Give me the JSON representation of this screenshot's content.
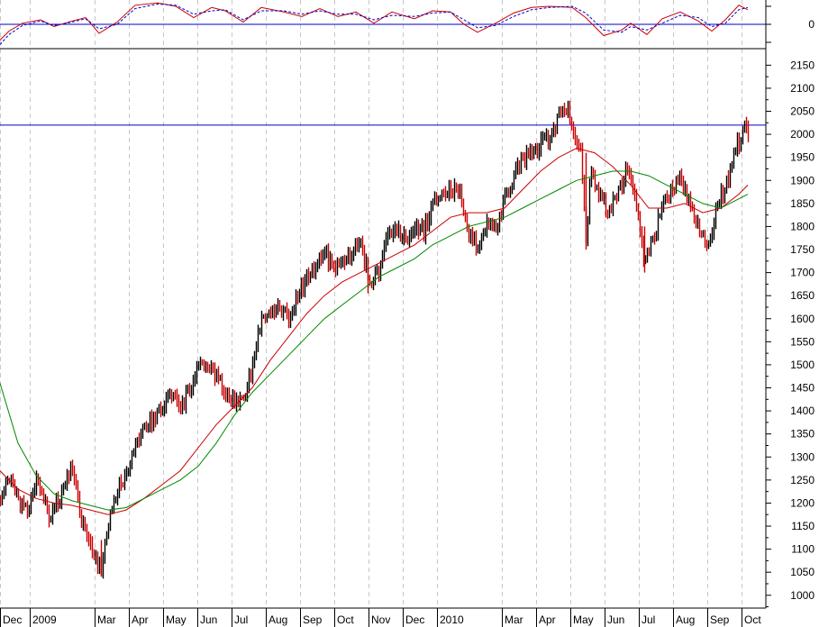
{
  "chart_data": [
    {
      "type": "line",
      "panel": "oscillator",
      "y_tick_labels": [
        "0"
      ],
      "ylim": [
        -1,
        1
      ],
      "reference_line": {
        "value": 0,
        "color": "#0000cc"
      },
      "series": [
        {
          "color": "#cc0000",
          "style": "solid",
          "values": [
            [
              0,
              -0.7
            ],
            [
              10,
              -0.3
            ],
            [
              25,
              0.05
            ],
            [
              45,
              0.2
            ],
            [
              60,
              -0.1
            ],
            [
              80,
              0.15
            ],
            [
              95,
              0.3
            ],
            [
              110,
              -0.4
            ],
            [
              130,
              0.1
            ],
            [
              150,
              0.85
            ],
            [
              175,
              0.95
            ],
            [
              195,
              0.8
            ],
            [
              215,
              0.3
            ],
            [
              235,
              0.75
            ],
            [
              250,
              0.6
            ],
            [
              270,
              0.1
            ],
            [
              290,
              0.75
            ],
            [
              315,
              0.55
            ],
            [
              335,
              0.35
            ],
            [
              355,
              0.7
            ],
            [
              375,
              0.35
            ],
            [
              395,
              0.55
            ],
            [
              415,
              0.05
            ],
            [
              435,
              0.55
            ],
            [
              460,
              0.25
            ],
            [
              480,
              0.6
            ],
            [
              500,
              0.55
            ],
            [
              515,
              0.0
            ],
            [
              530,
              -0.35
            ],
            [
              550,
              0.05
            ],
            [
              570,
              0.5
            ],
            [
              590,
              0.75
            ],
            [
              610,
              0.8
            ],
            [
              635,
              0.75
            ],
            [
              650,
              0.3
            ],
            [
              670,
              -0.5
            ],
            [
              690,
              -0.25
            ],
            [
              700,
              0.05
            ],
            [
              718,
              -0.45
            ],
            [
              735,
              0.25
            ],
            [
              755,
              0.55
            ],
            [
              775,
              0.15
            ],
            [
              790,
              -0.3
            ],
            [
              805,
              0.2
            ],
            [
              820,
              0.85
            ],
            [
              830,
              0.65
            ]
          ]
        },
        {
          "color": "#0000cc",
          "style": "dashed",
          "values": [
            [
              0,
              -0.9
            ],
            [
              10,
              -0.45
            ],
            [
              25,
              -0.05
            ],
            [
              45,
              0.15
            ],
            [
              60,
              -0.05
            ],
            [
              80,
              0.1
            ],
            [
              95,
              0.25
            ],
            [
              110,
              -0.2
            ],
            [
              130,
              0.0
            ],
            [
              150,
              0.7
            ],
            [
              175,
              0.9
            ],
            [
              195,
              0.85
            ],
            [
              215,
              0.45
            ],
            [
              235,
              0.6
            ],
            [
              250,
              0.65
            ],
            [
              270,
              0.2
            ],
            [
              290,
              0.6
            ],
            [
              315,
              0.6
            ],
            [
              335,
              0.45
            ],
            [
              355,
              0.6
            ],
            [
              375,
              0.45
            ],
            [
              395,
              0.45
            ],
            [
              415,
              0.2
            ],
            [
              435,
              0.4
            ],
            [
              460,
              0.35
            ],
            [
              480,
              0.5
            ],
            [
              500,
              0.55
            ],
            [
              515,
              0.2
            ],
            [
              530,
              -0.15
            ],
            [
              550,
              -0.05
            ],
            [
              570,
              0.35
            ],
            [
              590,
              0.65
            ],
            [
              610,
              0.75
            ],
            [
              635,
              0.8
            ],
            [
              650,
              0.5
            ],
            [
              670,
              -0.25
            ],
            [
              690,
              -0.35
            ],
            [
              700,
              -0.1
            ],
            [
              718,
              -0.25
            ],
            [
              735,
              0.05
            ],
            [
              755,
              0.4
            ],
            [
              775,
              0.3
            ],
            [
              790,
              -0.1
            ],
            [
              805,
              0.05
            ],
            [
              820,
              0.65
            ],
            [
              830,
              0.75
            ]
          ]
        }
      ]
    },
    {
      "type": "candlestick",
      "panel": "price",
      "ylim": [
        980,
        2180
      ],
      "y_ticks": [
        1000,
        1050,
        1100,
        1150,
        1200,
        1250,
        1300,
        1350,
        1400,
        1450,
        1500,
        1550,
        1600,
        1650,
        1700,
        1750,
        1800,
        1850,
        1900,
        1950,
        2000,
        2050,
        2100,
        2150
      ],
      "x_tick_labels": [
        "Dec",
        "2009",
        "Mar",
        "Apr",
        "May",
        "Jun",
        "Jul",
        "Aug",
        "Sep",
        "Oct",
        "Nov",
        "Dec",
        "2010",
        "Mar",
        "Apr",
        "May",
        "Jun",
        "Jul",
        "Aug",
        "Sep",
        "Oct"
      ],
      "x_tick_positions": [
        0,
        33,
        105,
        143,
        181,
        219,
        257,
        295,
        333,
        371,
        409,
        447,
        485,
        557,
        595,
        633,
        671,
        709,
        747,
        785,
        823
      ],
      "gridlines": "vertical-dashed",
      "resistance_line": {
        "value": 2020,
        "color": "#0000cc"
      },
      "up_color": "#000000",
      "down_color": "#cc0000",
      "price_path": [
        [
          0,
          1210
        ],
        [
          10,
          1260
        ],
        [
          20,
          1200
        ],
        [
          30,
          1180
        ],
        [
          40,
          1250
        ],
        [
          55,
          1170
        ],
        [
          65,
          1210
        ],
        [
          80,
          1280
        ],
        [
          90,
          1160
        ],
        [
          100,
          1110
        ],
        [
          112,
          1050
        ],
        [
          120,
          1150
        ],
        [
          130,
          1230
        ],
        [
          140,
          1270
        ],
        [
          150,
          1330
        ],
        [
          160,
          1370
        ],
        [
          170,
          1380
        ],
        [
          180,
          1410
        ],
        [
          190,
          1440
        ],
        [
          200,
          1400
        ],
        [
          210,
          1450
        ],
        [
          220,
          1490
        ],
        [
          230,
          1500
        ],
        [
          240,
          1470
        ],
        [
          250,
          1440
        ],
        [
          260,
          1420
        ],
        [
          270,
          1430
        ],
        [
          280,
          1500
        ],
        [
          290,
          1600
        ],
        [
          300,
          1610
        ],
        [
          310,
          1620
        ],
        [
          320,
          1600
        ],
        [
          330,
          1650
        ],
        [
          340,
          1690
        ],
        [
          350,
          1710
        ],
        [
          360,
          1750
        ],
        [
          370,
          1700
        ],
        [
          380,
          1720
        ],
        [
          390,
          1740
        ],
        [
          400,
          1760
        ],
        [
          410,
          1680
        ],
        [
          420,
          1700
        ],
        [
          430,
          1780
        ],
        [
          440,
          1790
        ],
        [
          450,
          1770
        ],
        [
          460,
          1800
        ],
        [
          470,
          1790
        ],
        [
          480,
          1850
        ],
        [
          490,
          1880
        ],
        [
          500,
          1880
        ],
        [
          510,
          1870
        ],
        [
          515,
          1810
        ],
        [
          520,
          1780
        ],
        [
          530,
          1760
        ],
        [
          540,
          1810
        ],
        [
          550,
          1790
        ],
        [
          560,
          1860
        ],
        [
          570,
          1910
        ],
        [
          580,
          1950
        ],
        [
          590,
          1960
        ],
        [
          600,
          1980
        ],
        [
          610,
          1990
        ],
        [
          620,
          2040
        ],
        [
          630,
          2050
        ],
        [
          640,
          1990
        ],
        [
          645,
          1950
        ],
        [
          650,
          1760
        ],
        [
          655,
          1920
        ],
        [
          665,
          1870
        ],
        [
          675,
          1830
        ],
        [
          685,
          1870
        ],
        [
          695,
          1920
        ],
        [
          705,
          1860
        ],
        [
          715,
          1720
        ],
        [
          725,
          1780
        ],
        [
          735,
          1840
        ],
        [
          745,
          1880
        ],
        [
          755,
          1900
        ],
        [
          765,
          1850
        ],
        [
          775,
          1800
        ],
        [
          785,
          1760
        ],
        [
          795,
          1840
        ],
        [
          805,
          1890
        ],
        [
          815,
          1960
        ],
        [
          825,
          2010
        ],
        [
          830,
          2000
        ]
      ],
      "series": [
        {
          "color": "#cc0000",
          "values": [
            [
              0,
              1270
            ],
            [
              20,
              1230
            ],
            [
              40,
              1210
            ],
            [
              60,
              1200
            ],
            [
              80,
              1195
            ],
            [
              100,
              1185
            ],
            [
              120,
              1175
            ],
            [
              140,
              1185
            ],
            [
              160,
              1210
            ],
            [
              180,
              1240
            ],
            [
              200,
              1270
            ],
            [
              220,
              1320
            ],
            [
              240,
              1370
            ],
            [
              260,
              1410
            ],
            [
              280,
              1450
            ],
            [
              300,
              1510
            ],
            [
              320,
              1560
            ],
            [
              340,
              1610
            ],
            [
              360,
              1650
            ],
            [
              380,
              1680
            ],
            [
              400,
              1700
            ],
            [
              420,
              1720
            ],
            [
              440,
              1740
            ],
            [
              460,
              1760
            ],
            [
              480,
              1790
            ],
            [
              500,
              1820
            ],
            [
              520,
              1830
            ],
            [
              540,
              1830
            ],
            [
              560,
              1840
            ],
            [
              580,
              1880
            ],
            [
              600,
              1920
            ],
            [
              620,
              1950
            ],
            [
              640,
              1970
            ],
            [
              660,
              1960
            ],
            [
              680,
              1930
            ],
            [
              700,
              1890
            ],
            [
              720,
              1840
            ],
            [
              740,
              1840
            ],
            [
              760,
              1850
            ],
            [
              780,
              1830
            ],
            [
              800,
              1840
            ],
            [
              820,
              1870
            ],
            [
              830,
              1890
            ]
          ]
        },
        {
          "color": "#008800",
          "values": [
            [
              0,
              1460
            ],
            [
              20,
              1330
            ],
            [
              40,
              1260
            ],
            [
              60,
              1220
            ],
            [
              80,
              1205
            ],
            [
              100,
              1195
            ],
            [
              120,
              1185
            ],
            [
              140,
              1190
            ],
            [
              160,
              1210
            ],
            [
              180,
              1230
            ],
            [
              200,
              1250
            ],
            [
              220,
              1280
            ],
            [
              240,
              1330
            ],
            [
              260,
              1390
            ],
            [
              280,
              1440
            ],
            [
              300,
              1480
            ],
            [
              320,
              1520
            ],
            [
              340,
              1560
            ],
            [
              360,
              1600
            ],
            [
              380,
              1630
            ],
            [
              400,
              1660
            ],
            [
              420,
              1690
            ],
            [
              440,
              1710
            ],
            [
              460,
              1730
            ],
            [
              480,
              1760
            ],
            [
              500,
              1780
            ],
            [
              520,
              1800
            ],
            [
              540,
              1810
            ],
            [
              560,
              1820
            ],
            [
              580,
              1840
            ],
            [
              600,
              1860
            ],
            [
              620,
              1880
            ],
            [
              640,
              1900
            ],
            [
              660,
              1910
            ],
            [
              680,
              1920
            ],
            [
              700,
              1920
            ],
            [
              720,
              1910
            ],
            [
              740,
              1890
            ],
            [
              760,
              1870
            ],
            [
              780,
              1850
            ],
            [
              800,
              1840
            ],
            [
              820,
              1860
            ],
            [
              830,
              1870
            ]
          ]
        }
      ]
    }
  ]
}
